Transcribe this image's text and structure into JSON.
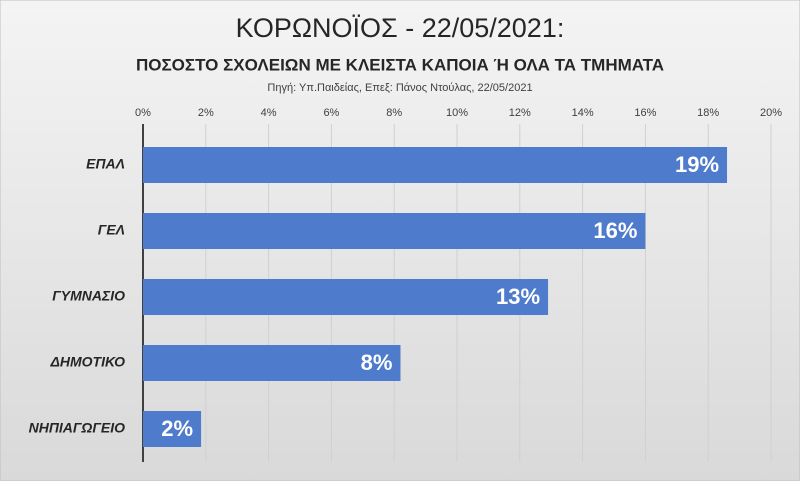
{
  "chart_data": {
    "type": "hbar",
    "title": "ΚΟΡΩΝΟΪΟΣ - 22/05/2021:",
    "subtitle": "ΠΟΣΟΣΤΟ ΣΧΟΛΕΙΩΝ ΜΕ ΚΛΕΙΣΤΑ ΚΑΠΟΙΑ Ή ΟΛΑ ΤΑ ΤΜΗΜΑΤΑ",
    "source": "Πηγή: Υπ.Παιδείας,  Επεξ: Πάνος Ντούλας,  22/05/2021",
    "categories": [
      "ΕΠΑΛ",
      "ΓΕΛ",
      "ΓΥΜΝΑΣΙΟ",
      "ΔΗΜΟΤΙΚΟ",
      "ΝΗΠΙΑΓΩΓΕΙΟ"
    ],
    "values": [
      18.6,
      16.0,
      12.9,
      8.2,
      1.85
    ],
    "value_labels": [
      "19%",
      "16%",
      "13%",
      "8%",
      "2%"
    ],
    "color": "#4f7bcc",
    "xlim": [
      0,
      20
    ],
    "xticks": [
      {
        "value": 0,
        "label": "0%"
      },
      {
        "value": 2,
        "label": "2%"
      },
      {
        "value": 4,
        "label": "4%"
      },
      {
        "value": 6,
        "label": "6%"
      },
      {
        "value": 8,
        "label": "8%"
      },
      {
        "value": 10,
        "label": "10%"
      },
      {
        "value": 12,
        "label": "12%"
      },
      {
        "value": 14,
        "label": "14%"
      },
      {
        "value": 16,
        "label": "16%"
      },
      {
        "value": 18,
        "label": "18%"
      },
      {
        "value": 20,
        "label": "20%"
      }
    ],
    "grid": true
  }
}
